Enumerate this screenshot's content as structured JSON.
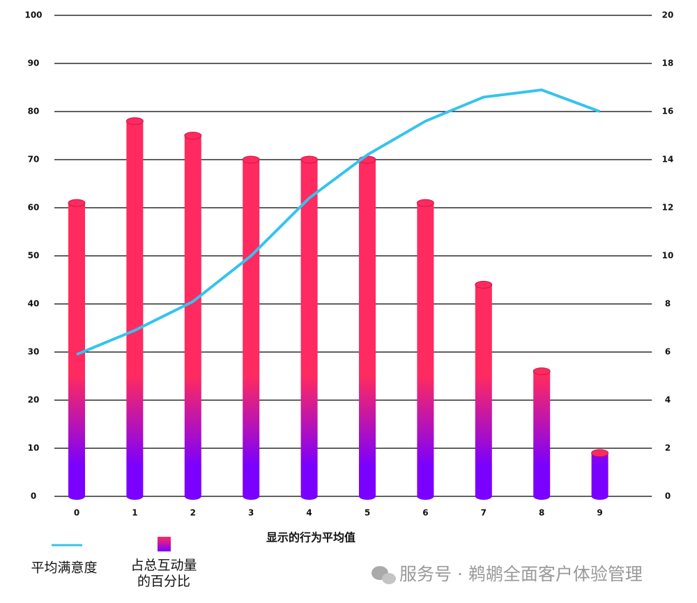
{
  "chart_data": {
    "type": "bar_line",
    "xlabel": "显示的行为平均值",
    "categories": [
      "0",
      "1",
      "2",
      "3",
      "4",
      "5",
      "6",
      "7",
      "8",
      "9"
    ],
    "series": [
      {
        "name": "平均满意度",
        "type": "line",
        "axis": "y2",
        "color": "#35c3ee",
        "values": [
          5.9,
          6.9,
          8.1,
          10,
          12.4,
          14.2,
          15.6,
          16.6,
          16.9,
          16
        ]
      },
      {
        "name": "占总互动量的百分比",
        "type": "bar",
        "color": "#ff2a5f",
        "color_bottom": "#7a00ff",
        "values": [
          61,
          78,
          75,
          70,
          70,
          70,
          61,
          44,
          26,
          9
        ]
      }
    ],
    "ylim": [
      0,
      100
    ],
    "yticks": [
      0,
      10,
      20,
      30,
      40,
      50,
      60,
      70,
      80,
      90,
      100
    ],
    "y2lim": [
      0,
      20
    ],
    "y2ticks": [
      0,
      2,
      4,
      6,
      8,
      10,
      12,
      14,
      16,
      18,
      20
    ],
    "grid": true,
    "watermark": "服务号 · 鹈鹕全面客户体验管理"
  }
}
